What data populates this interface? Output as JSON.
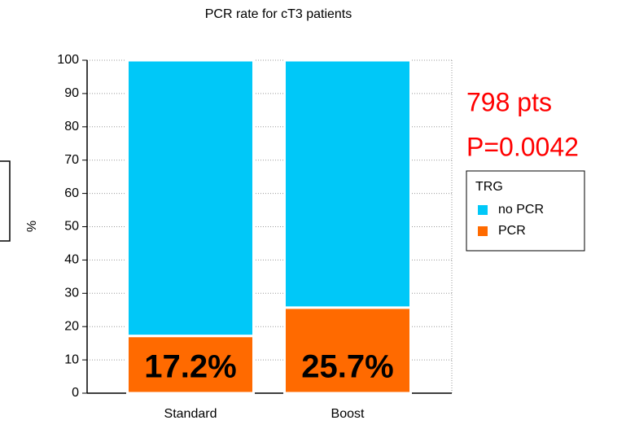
{
  "chart_data": {
    "type": "stacked_bar",
    "title": "PCR rate for cT3 patients",
    "ylabel": "%",
    "categories": [
      "Standard",
      "Boost"
    ],
    "series": [
      {
        "name": "no PCR",
        "color": "#00c8f8",
        "values": [
          82.8,
          74.3
        ]
      },
      {
        "name": "PCR",
        "color": "#ff6a00",
        "values": [
          17.2,
          25.7
        ],
        "value_labels": [
          "17.2%",
          "25.7%"
        ]
      }
    ],
    "ylim": [
      0,
      100
    ],
    "yticks": [
      0,
      10,
      20,
      30,
      40,
      50,
      60,
      70,
      80,
      90,
      100
    ],
    "grid": true,
    "legend": {
      "title": "TRG",
      "position": "right"
    },
    "annotations": [
      "798 pts",
      "P=0.0042"
    ]
  }
}
